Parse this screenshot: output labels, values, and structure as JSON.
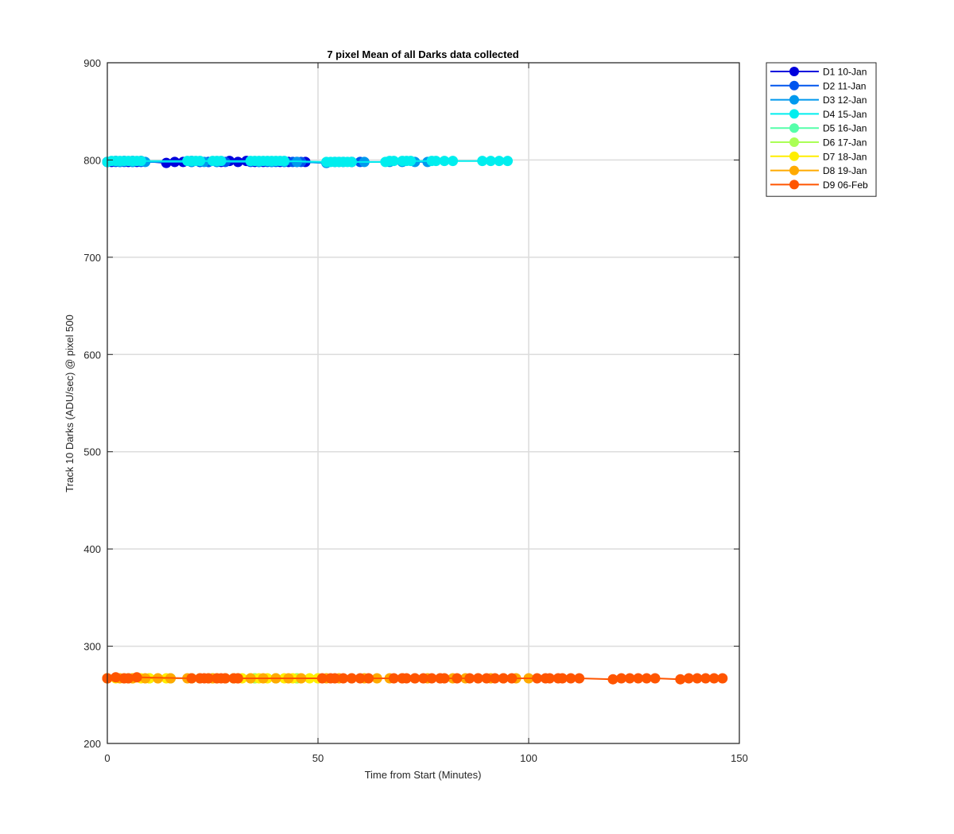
{
  "chart_data": {
    "type": "line",
    "title": "7 pixel Mean of all Darks data collected",
    "xlabel": "Time from Start (Minutes)",
    "ylabel": "Track 10 Darks (ADU/sec) @ pixel 500",
    "xlim": [
      0,
      150
    ],
    "ylim": [
      200,
      900
    ],
    "xticks": [
      0,
      50,
      100,
      150
    ],
    "yticks": [
      200,
      300,
      400,
      500,
      600,
      700,
      800,
      900
    ],
    "grid": true,
    "legend_position": "outside-top-right",
    "series": [
      {
        "name": "D1 10-Jan",
        "color": "#0000dd",
        "x": [
          0,
          1,
          2,
          3,
          4,
          5,
          6,
          7,
          8,
          14,
          16,
          18,
          20,
          22,
          24,
          27,
          29,
          31,
          33,
          35,
          37,
          39,
          41,
          43,
          45,
          47
        ],
        "y": [
          798,
          798,
          799,
          798,
          799,
          798,
          799,
          798,
          799,
          797,
          798,
          798,
          799,
          798,
          798,
          798,
          799,
          798,
          799,
          798,
          798,
          798,
          798,
          798,
          798,
          798
        ]
      },
      {
        "name": "D2 11-Jan",
        "color": "#0055ee",
        "x": [
          0,
          2,
          4,
          6,
          8,
          20,
          22,
          24,
          26,
          28,
          34,
          36,
          38,
          40,
          42,
          44,
          46,
          52,
          54,
          56,
          58,
          60
        ],
        "y": [
          798,
          798,
          798,
          798,
          798,
          798,
          798,
          798,
          798,
          798,
          798,
          798,
          798,
          798,
          798,
          798,
          798,
          797,
          798,
          798,
          798,
          798
        ]
      },
      {
        "name": "D3 12-Jan",
        "color": "#0099ee",
        "x": [
          0,
          3,
          6,
          9,
          20,
          23,
          26,
          36,
          39,
          42,
          45,
          52,
          55,
          58,
          61,
          67,
          70,
          73,
          76
        ],
        "y": [
          798,
          798,
          798,
          798,
          798,
          798,
          798,
          798,
          798,
          798,
          798,
          797,
          798,
          798,
          798,
          798,
          798,
          798,
          798
        ]
      },
      {
        "name": "D4 15-Jan",
        "color": "#00eeee",
        "x": [
          0,
          1,
          2,
          3,
          4,
          5,
          6,
          7,
          8,
          19,
          20,
          21,
          22,
          25,
          26,
          27,
          34,
          35,
          36,
          37,
          38,
          39,
          40,
          41,
          42,
          52,
          53,
          54,
          55,
          56,
          57,
          58,
          66,
          67,
          68,
          70,
          71,
          72,
          77,
          78,
          80,
          82,
          89,
          91,
          93,
          95
        ],
        "y": [
          798,
          799,
          799,
          799,
          799,
          799,
          799,
          799,
          799,
          799,
          799,
          799,
          799,
          799,
          799,
          799,
          799,
          799,
          799,
          799,
          799,
          799,
          799,
          799,
          799,
          798,
          798,
          798,
          798,
          798,
          798,
          798,
          798,
          799,
          799,
          799,
          799,
          799,
          799,
          799,
          799,
          799,
          799,
          799,
          799,
          799
        ]
      },
      {
        "name": "D5 16-Jan",
        "color": "#55ffaa",
        "x": [
          0,
          5,
          10,
          15,
          20,
          25,
          30,
          35,
          40,
          45
        ],
        "y": [
          267,
          267,
          267,
          267,
          267,
          267,
          267,
          267,
          267,
          267
        ]
      },
      {
        "name": "D6 17-Jan",
        "color": "#aaff55",
        "x": [
          0,
          5,
          10,
          15,
          20,
          25,
          30,
          35,
          40,
          45,
          50
        ],
        "y": [
          267,
          267,
          267,
          267,
          267,
          267,
          267,
          267,
          267,
          267,
          267
        ]
      },
      {
        "name": "D7 18-Jan",
        "color": "#ffee00",
        "x": [
          0,
          2,
          4,
          6,
          8,
          10,
          12,
          14,
          20,
          22,
          24,
          26,
          28,
          30,
          32,
          34,
          36,
          38,
          40,
          42,
          44,
          46,
          48,
          50
        ],
        "y": [
          267,
          267,
          267,
          267,
          267,
          267,
          267,
          267,
          267,
          267,
          267,
          267,
          267,
          267,
          267,
          267,
          267,
          267,
          267,
          267,
          267,
          267,
          267,
          267
        ]
      },
      {
        "name": "D8 19-Jan",
        "color": "#ffaa00",
        "x": [
          0,
          3,
          6,
          9,
          12,
          15,
          19,
          22,
          25,
          28,
          31,
          34,
          37,
          40,
          43,
          46,
          52,
          55,
          58,
          61,
          64,
          67,
          70,
          73,
          76,
          79,
          82,
          85,
          88,
          91,
          94,
          97,
          100
        ],
        "y": [
          267,
          267,
          267,
          267,
          267,
          267,
          267,
          267,
          267,
          267,
          267,
          267,
          267,
          267,
          267,
          267,
          267,
          267,
          267,
          267,
          267,
          267,
          267,
          267,
          267,
          267,
          267,
          267,
          267,
          267,
          267,
          267,
          267
        ]
      },
      {
        "name": "D9 06-Feb",
        "color": "#ff5500",
        "x": [
          0,
          2,
          4,
          5,
          7,
          20,
          22,
          23,
          24,
          26,
          27,
          28,
          30,
          31,
          51,
          53,
          54,
          56,
          58,
          60,
          62,
          68,
          70,
          71,
          73,
          75,
          77,
          79,
          80,
          83,
          86,
          88,
          90,
          92,
          94,
          96,
          102,
          104,
          105,
          107,
          108,
          110,
          112,
          120,
          122,
          124,
          126,
          128,
          130,
          136,
          138,
          140,
          142,
          144,
          146
        ],
        "y": [
          267,
          268,
          267,
          267,
          268,
          267,
          267,
          267,
          267,
          267,
          267,
          267,
          267,
          267,
          267,
          267,
          267,
          267,
          267,
          267,
          267,
          267,
          267,
          267,
          267,
          267,
          267,
          267,
          267,
          267,
          267,
          267,
          267,
          267,
          267,
          267,
          267,
          267,
          267,
          267,
          267,
          267,
          267,
          266,
          267,
          267,
          267,
          267,
          267,
          266,
          267,
          267,
          267,
          267,
          267
        ]
      }
    ]
  }
}
